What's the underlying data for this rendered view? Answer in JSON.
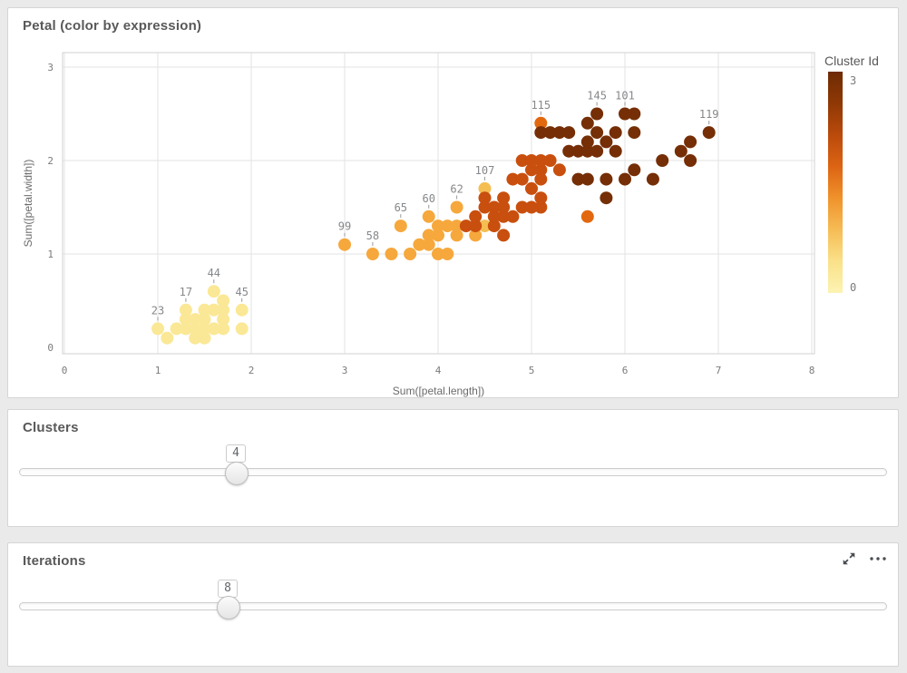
{
  "panels": {
    "chart": {
      "title": "Petal (color by expression)"
    },
    "clusters": {
      "title": "Clusters"
    },
    "iterations": {
      "title": "Iterations"
    }
  },
  "sliders": {
    "clusters": {
      "value": "4"
    },
    "iterations": {
      "value": "8"
    }
  },
  "icons": {
    "expand": "diagonal-resize-arrows",
    "more": "ellipsis"
  },
  "colors": {
    "page_bg": "#eaeaea",
    "panel_bg": "#ffffff",
    "panel_border": "#d5d5d5",
    "grid": "#e3e3e3",
    "plot_border": "#d2d2d2",
    "tick_text": "#7b7b7b",
    "axis_title_text": "#6b6b6b",
    "panel_title_text": "#595959",
    "point_label_text": "#85888b",
    "point_label_tick": "#9a9a9a"
  },
  "chart_data": {
    "type": "scatter",
    "title": "Petal (color by expression)",
    "xlabel": "Sum([petal.length])",
    "ylabel": "Sum([petal.width])",
    "xlim": [
      0,
      8
    ],
    "ylim": [
      0,
      3
    ],
    "xticks": [
      0,
      1,
      2,
      3,
      4,
      5,
      6,
      7,
      8
    ],
    "yticks": [
      0,
      1,
      2,
      3
    ],
    "grid": true,
    "legend": {
      "title": "Cluster Id",
      "max_label": "3",
      "min_label": "0",
      "position": "right",
      "gradient_top_to_bottom": [
        "#6E2B04",
        "#8F3805",
        "#BA4A0B",
        "#DC6413",
        "#F0922B",
        "#F6BC55",
        "#FAE189",
        "#FCF3B3"
      ]
    },
    "palette": {
      "c0": "#FAE896",
      "c1": "#F6A83C",
      "c1b": "#F5BE53",
      "c2": "#C94F0E",
      "c2b": "#E2680F",
      "c3": "#752E06"
    },
    "points": [
      {
        "x": 1.0,
        "y": 0.2,
        "c": "c0",
        "label": "23"
      },
      {
        "x": 1.1,
        "y": 0.1,
        "c": "c0"
      },
      {
        "x": 1.2,
        "y": 0.2,
        "c": "c0"
      },
      {
        "x": 1.3,
        "y": 0.2,
        "c": "c0"
      },
      {
        "x": 1.3,
        "y": 0.3,
        "c": "c0"
      },
      {
        "x": 1.3,
        "y": 0.4,
        "c": "c0",
        "label": "17"
      },
      {
        "x": 1.4,
        "y": 0.1,
        "c": "c0"
      },
      {
        "x": 1.4,
        "y": 0.2,
        "c": "c0"
      },
      {
        "x": 1.4,
        "y": 0.3,
        "c": "c0"
      },
      {
        "x": 1.5,
        "y": 0.1,
        "c": "c0"
      },
      {
        "x": 1.5,
        "y": 0.2,
        "c": "c0"
      },
      {
        "x": 1.5,
        "y": 0.3,
        "c": "c0"
      },
      {
        "x": 1.5,
        "y": 0.4,
        "c": "c0"
      },
      {
        "x": 1.6,
        "y": 0.2,
        "c": "c0"
      },
      {
        "x": 1.6,
        "y": 0.4,
        "c": "c0"
      },
      {
        "x": 1.6,
        "y": 0.6,
        "c": "c0",
        "label": "44"
      },
      {
        "x": 1.7,
        "y": 0.2,
        "c": "c0"
      },
      {
        "x": 1.7,
        "y": 0.3,
        "c": "c0"
      },
      {
        "x": 1.7,
        "y": 0.4,
        "c": "c0"
      },
      {
        "x": 1.7,
        "y": 0.5,
        "c": "c0"
      },
      {
        "x": 1.9,
        "y": 0.2,
        "c": "c0"
      },
      {
        "x": 1.9,
        "y": 0.4,
        "c": "c0",
        "label": "45"
      },
      {
        "x": 3.0,
        "y": 1.1,
        "c": "c1",
        "label": "99"
      },
      {
        "x": 3.3,
        "y": 1.0,
        "c": "c1",
        "label": "58"
      },
      {
        "x": 3.5,
        "y": 1.0,
        "c": "c1"
      },
      {
        "x": 3.6,
        "y": 1.3,
        "c": "c1",
        "label": "65"
      },
      {
        "x": 3.7,
        "y": 1.0,
        "c": "c1"
      },
      {
        "x": 3.8,
        "y": 1.1,
        "c": "c1"
      },
      {
        "x": 3.9,
        "y": 1.1,
        "c": "c1"
      },
      {
        "x": 3.9,
        "y": 1.2,
        "c": "c1"
      },
      {
        "x": 3.9,
        "y": 1.4,
        "c": "c1",
        "label": "60"
      },
      {
        "x": 4.0,
        "y": 1.0,
        "c": "c1"
      },
      {
        "x": 4.0,
        "y": 1.2,
        "c": "c1"
      },
      {
        "x": 4.0,
        "y": 1.3,
        "c": "c1"
      },
      {
        "x": 4.1,
        "y": 1.0,
        "c": "c1"
      },
      {
        "x": 4.1,
        "y": 1.3,
        "c": "c1"
      },
      {
        "x": 4.2,
        "y": 1.2,
        "c": "c1"
      },
      {
        "x": 4.2,
        "y": 1.3,
        "c": "c1"
      },
      {
        "x": 4.2,
        "y": 1.5,
        "c": "c1",
        "label": "62"
      },
      {
        "x": 4.4,
        "y": 1.2,
        "c": "c1"
      },
      {
        "x": 4.5,
        "y": 1.3,
        "c": "c1b"
      },
      {
        "x": 4.5,
        "y": 1.7,
        "c": "c1b",
        "label": "107"
      },
      {
        "x": 4.3,
        "y": 1.3,
        "c": "c2"
      },
      {
        "x": 4.4,
        "y": 1.3,
        "c": "c2"
      },
      {
        "x": 4.6,
        "y": 1.3,
        "c": "c2"
      },
      {
        "x": 4.4,
        "y": 1.4,
        "c": "c2"
      },
      {
        "x": 4.6,
        "y": 1.4,
        "c": "c2"
      },
      {
        "x": 4.7,
        "y": 1.4,
        "c": "c2"
      },
      {
        "x": 4.8,
        "y": 1.4,
        "c": "c2"
      },
      {
        "x": 4.7,
        "y": 1.2,
        "c": "c2"
      },
      {
        "x": 4.5,
        "y": 1.5,
        "c": "c2"
      },
      {
        "x": 4.6,
        "y": 1.5,
        "c": "c2"
      },
      {
        "x": 4.7,
        "y": 1.5,
        "c": "c2"
      },
      {
        "x": 4.9,
        "y": 1.5,
        "c": "c2"
      },
      {
        "x": 5.0,
        "y": 1.5,
        "c": "c2"
      },
      {
        "x": 5.1,
        "y": 1.5,
        "c": "c2"
      },
      {
        "x": 4.5,
        "y": 1.6,
        "c": "c2"
      },
      {
        "x": 4.7,
        "y": 1.6,
        "c": "c2"
      },
      {
        "x": 5.1,
        "y": 1.6,
        "c": "c2"
      },
      {
        "x": 5.0,
        "y": 1.7,
        "c": "c2"
      },
      {
        "x": 4.8,
        "y": 1.8,
        "c": "c2"
      },
      {
        "x": 4.9,
        "y": 1.8,
        "c": "c2"
      },
      {
        "x": 5.1,
        "y": 1.8,
        "c": "c2"
      },
      {
        "x": 5.0,
        "y": 1.9,
        "c": "c2"
      },
      {
        "x": 5.1,
        "y": 1.9,
        "c": "c2"
      },
      {
        "x": 5.3,
        "y": 1.9,
        "c": "c2"
      },
      {
        "x": 4.9,
        "y": 2.0,
        "c": "c2"
      },
      {
        "x": 5.0,
        "y": 2.0,
        "c": "c2"
      },
      {
        "x": 5.1,
        "y": 2.0,
        "c": "c2"
      },
      {
        "x": 5.2,
        "y": 2.0,
        "c": "c2"
      },
      {
        "x": 5.1,
        "y": 2.4,
        "c": "c2b",
        "label": "115"
      },
      {
        "x": 5.6,
        "y": 1.4,
        "c": "c2b"
      },
      {
        "x": 5.4,
        "y": 2.1,
        "c": "c3"
      },
      {
        "x": 5.5,
        "y": 2.1,
        "c": "c3"
      },
      {
        "x": 5.6,
        "y": 2.1,
        "c": "c3"
      },
      {
        "x": 5.7,
        "y": 2.1,
        "c": "c3"
      },
      {
        "x": 5.9,
        "y": 2.1,
        "c": "c3"
      },
      {
        "x": 6.6,
        "y": 2.1,
        "c": "c3"
      },
      {
        "x": 5.6,
        "y": 2.2,
        "c": "c3"
      },
      {
        "x": 5.8,
        "y": 2.2,
        "c": "c3"
      },
      {
        "x": 6.7,
        "y": 2.2,
        "c": "c3"
      },
      {
        "x": 5.1,
        "y": 2.3,
        "c": "c3"
      },
      {
        "x": 5.2,
        "y": 2.3,
        "c": "c3"
      },
      {
        "x": 5.3,
        "y": 2.3,
        "c": "c3"
      },
      {
        "x": 5.4,
        "y": 2.3,
        "c": "c3"
      },
      {
        "x": 5.7,
        "y": 2.3,
        "c": "c3"
      },
      {
        "x": 5.9,
        "y": 2.3,
        "c": "c3"
      },
      {
        "x": 6.1,
        "y": 2.3,
        "c": "c3"
      },
      {
        "x": 6.9,
        "y": 2.3,
        "c": "c3",
        "label": "119"
      },
      {
        "x": 5.6,
        "y": 2.4,
        "c": "c3"
      },
      {
        "x": 5.7,
        "y": 2.5,
        "c": "c3",
        "label": "145"
      },
      {
        "x": 6.0,
        "y": 2.5,
        "c": "c3",
        "label": "101"
      },
      {
        "x": 6.1,
        "y": 2.5,
        "c": "c3"
      },
      {
        "x": 6.4,
        "y": 2.0,
        "c": "c3"
      },
      {
        "x": 6.7,
        "y": 2.0,
        "c": "c3"
      },
      {
        "x": 6.1,
        "y": 1.9,
        "c": "c3"
      },
      {
        "x": 5.5,
        "y": 1.8,
        "c": "c3"
      },
      {
        "x": 5.6,
        "y": 1.8,
        "c": "c3"
      },
      {
        "x": 5.8,
        "y": 1.8,
        "c": "c3"
      },
      {
        "x": 6.0,
        "y": 1.8,
        "c": "c3"
      },
      {
        "x": 6.3,
        "y": 1.8,
        "c": "c3"
      },
      {
        "x": 5.8,
        "y": 1.6,
        "c": "c3"
      }
    ]
  }
}
